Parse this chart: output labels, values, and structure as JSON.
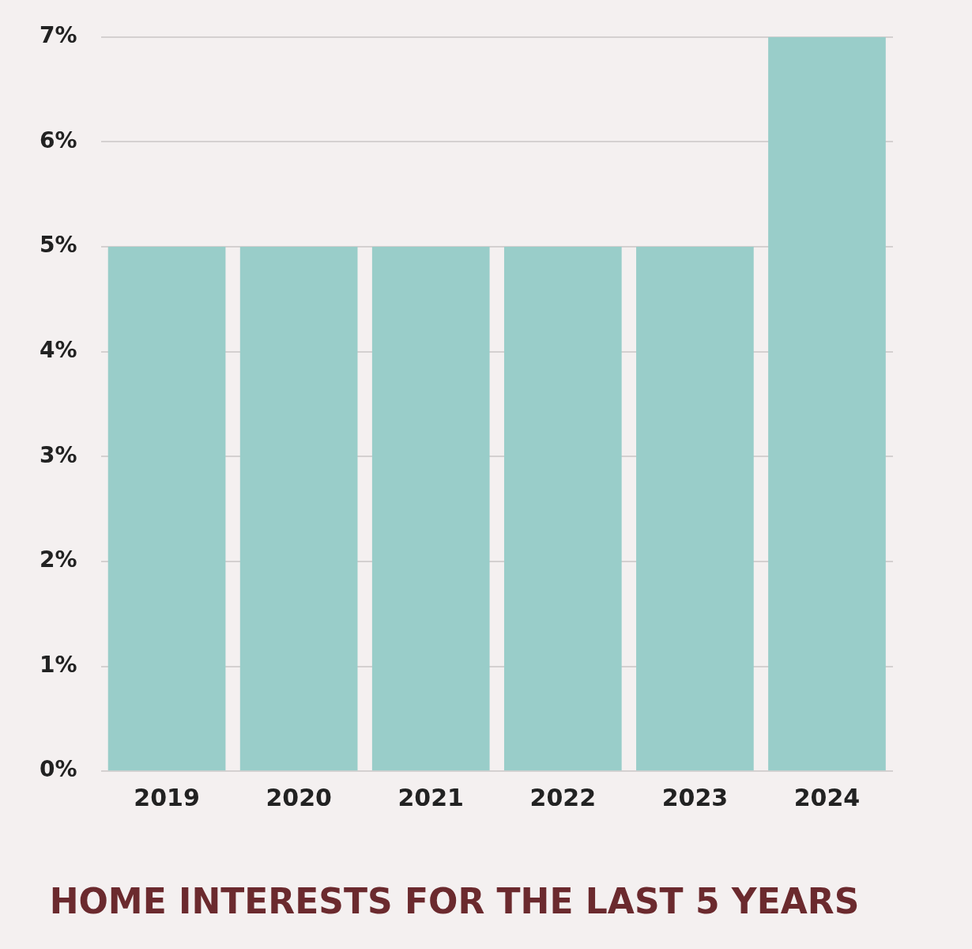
{
  "chart_data": {
    "type": "bar",
    "title": "HOME INTERESTS FOR THE LAST 5 YEARS",
    "categories": [
      "2019",
      "2020",
      "2021",
      "2022",
      "2023",
      "2024"
    ],
    "values": [
      5,
      5,
      5,
      5,
      5,
      7
    ],
    "color": "#99cdc9",
    "ylim": [
      0,
      7
    ],
    "yticks": [
      {
        "value": 0,
        "label": "0%"
      },
      {
        "value": 1,
        "label": "1%"
      },
      {
        "value": 2,
        "label": "2%"
      },
      {
        "value": 3,
        "label": "3%"
      },
      {
        "value": 4,
        "label": "4%"
      },
      {
        "value": 5,
        "label": "5%"
      },
      {
        "value": 6,
        "label": "6%"
      },
      {
        "value": 7,
        "label": "7%"
      }
    ],
    "grid": "y"
  }
}
